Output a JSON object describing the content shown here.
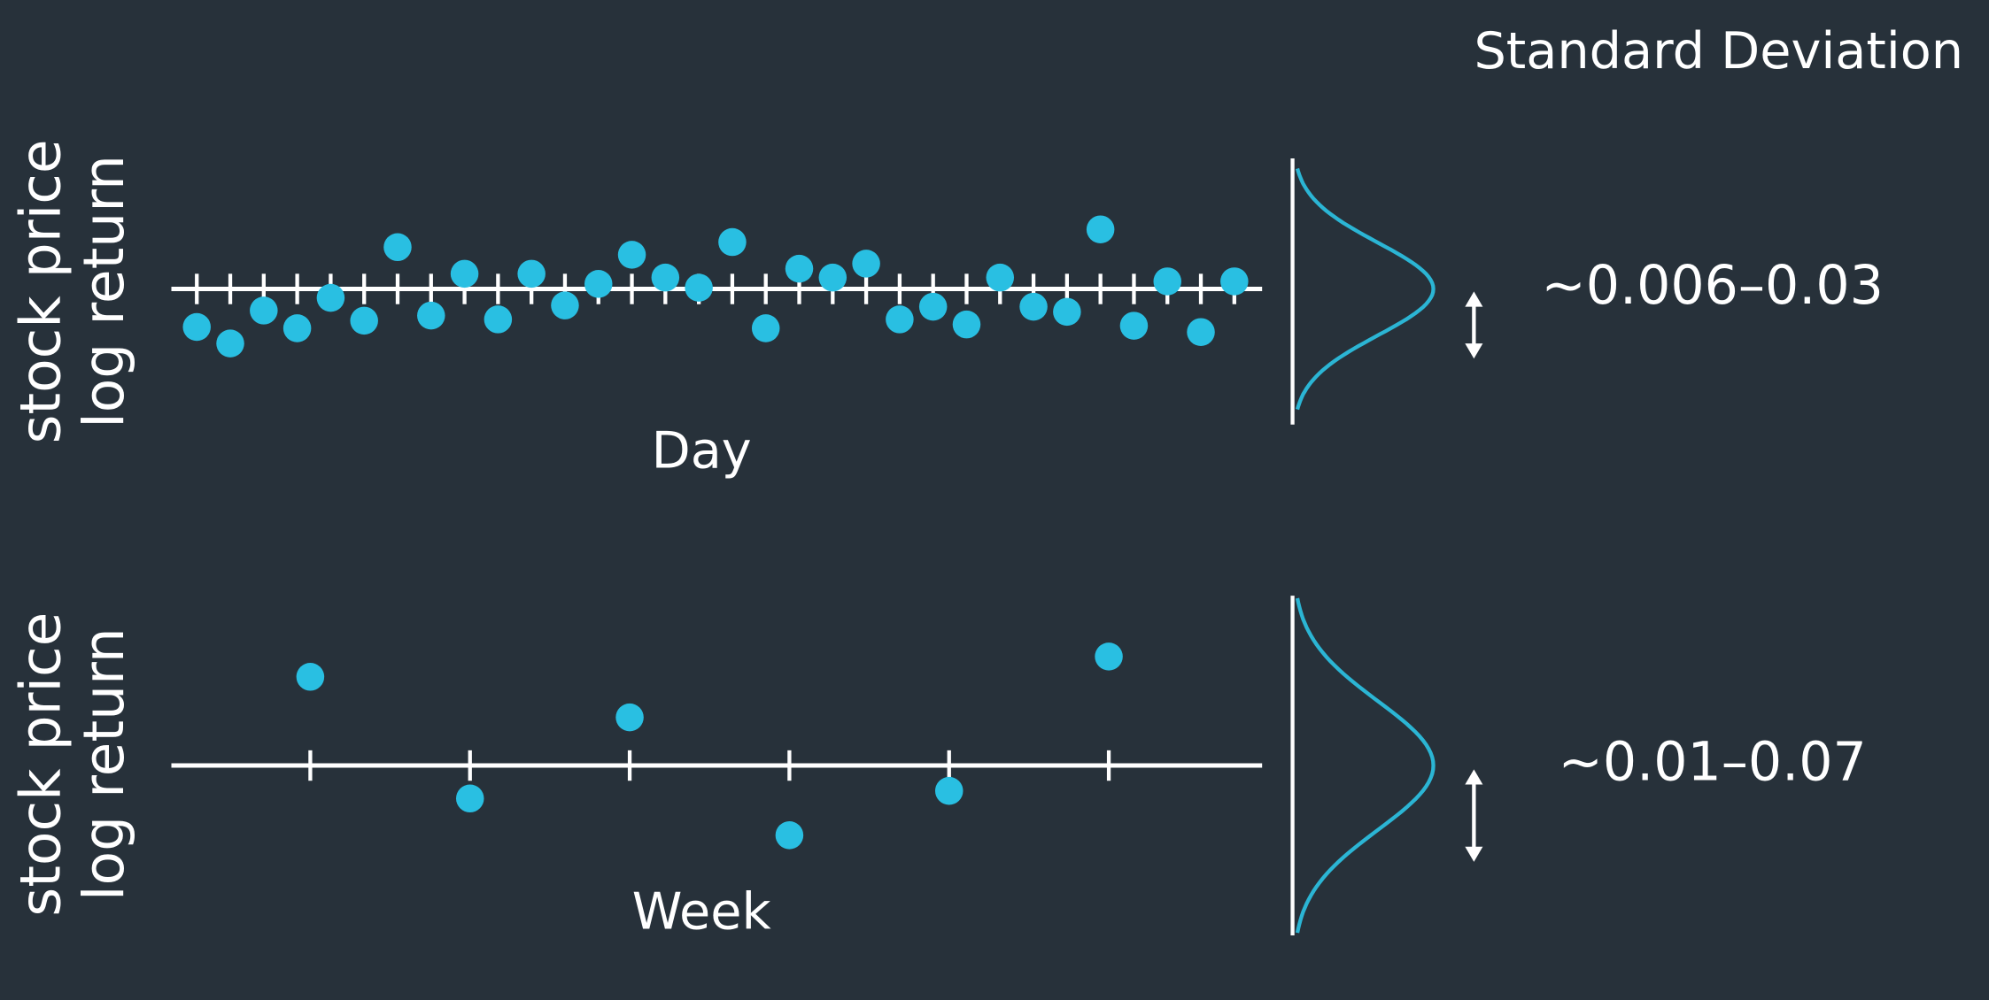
{
  "title": "Standard Deviation",
  "chart_data": [
    {
      "type": "scatter",
      "ylabel": [
        "stock price",
        "log return"
      ],
      "xlabel": "Day",
      "annotation": "~0.006–0.03",
      "color": "#29bfe2",
      "x": [
        1,
        2,
        3,
        4,
        5,
        6,
        7,
        8,
        9,
        10,
        11,
        12,
        13,
        14,
        15,
        16,
        17,
        18,
        19,
        20,
        21,
        22,
        23,
        24,
        25,
        26,
        27,
        28,
        29,
        30,
        31,
        32
      ],
      "values": [
        -3.0,
        -4.3,
        -1.7,
        -3.1,
        -0.7,
        -2.5,
        3.3,
        -2.1,
        1.2,
        -2.4,
        1.2,
        -1.3,
        0.4,
        2.7,
        0.9,
        0.1,
        3.7,
        -3.1,
        1.6,
        0.9,
        2.0,
        -2.4,
        -1.4,
        -2.8,
        0.9,
        -1.4,
        -1.8,
        4.7,
        -2.9,
        0.6,
        -3.4,
        0.6
      ],
      "xlim": [
        0.24,
        32.83
      ],
      "ylim": [
        -10,
        10
      ],
      "xticks": [
        1,
        2,
        3,
        4,
        5,
        6,
        7,
        8,
        9,
        10,
        11,
        12,
        13,
        14,
        15,
        16,
        17,
        18,
        19,
        20,
        21,
        22,
        23,
        24,
        25,
        26,
        27,
        28,
        29,
        30,
        31,
        32
      ]
    },
    {
      "type": "scatter",
      "ylabel": [
        "stock price",
        "log return"
      ],
      "xlabel": "Week",
      "annotation": "~0.01–0.07",
      "color": "#29bfe2",
      "x": [
        1,
        2,
        3,
        4,
        5,
        6
      ],
      "values": [
        7.0,
        -2.6,
        3.8,
        -5.5,
        -2.0,
        8.6
      ],
      "xlim": [
        0.13,
        6.96
      ],
      "ylim": [
        -13,
        13
      ],
      "xticks": [
        1,
        2,
        3,
        4,
        5,
        6
      ]
    }
  ]
}
